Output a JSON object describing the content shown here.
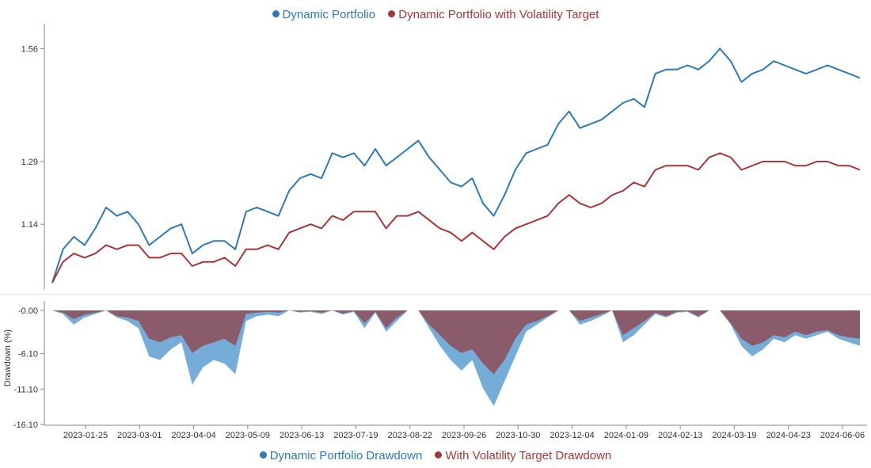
{
  "chart_data": [
    {
      "type": "line",
      "legend_position": "top-center",
      "grid": false,
      "y_ticks": [
        "1.56",
        "1.29",
        "1.14"
      ],
      "ylim": [
        0.985,
        1.61
      ],
      "x": [
        "2023-01-01",
        "2023-01-08",
        "2023-01-15",
        "2023-01-22",
        "2023-01-29",
        "2023-02-05",
        "2023-02-12",
        "2023-02-19",
        "2023-02-26",
        "2023-03-05",
        "2023-03-12",
        "2023-03-19",
        "2023-03-26",
        "2023-04-02",
        "2023-04-09",
        "2023-04-16",
        "2023-04-23",
        "2023-04-30",
        "2023-05-07",
        "2023-05-14",
        "2023-05-21",
        "2023-05-28",
        "2023-06-04",
        "2023-06-11",
        "2023-06-18",
        "2023-06-25",
        "2023-07-02",
        "2023-07-09",
        "2023-07-16",
        "2023-07-23",
        "2023-07-30",
        "2023-08-06",
        "2023-08-13",
        "2023-08-20",
        "2023-08-27",
        "2023-09-03",
        "2023-09-10",
        "2023-09-17",
        "2023-09-24",
        "2023-10-01",
        "2023-10-08",
        "2023-10-15",
        "2023-10-22",
        "2023-10-29",
        "2023-11-05",
        "2023-11-12",
        "2023-11-19",
        "2023-11-26",
        "2023-12-03",
        "2023-12-10",
        "2023-12-17",
        "2023-12-24",
        "2023-12-31",
        "2024-01-07",
        "2024-01-14",
        "2024-01-21",
        "2024-01-28",
        "2024-02-04",
        "2024-02-11",
        "2024-02-18",
        "2024-02-25",
        "2024-03-03",
        "2024-03-10",
        "2024-03-17",
        "2024-03-24",
        "2024-03-31",
        "2024-04-07",
        "2024-04-14",
        "2024-04-21",
        "2024-04-28",
        "2024-05-05",
        "2024-05-12",
        "2024-05-19",
        "2024-05-26",
        "2024-06-02",
        "2024-06-07"
      ],
      "series": [
        {
          "name": "Dynamic Portfolio",
          "color": "#2f79b3",
          "values": [
            1.0,
            1.08,
            1.11,
            1.09,
            1.13,
            1.18,
            1.16,
            1.17,
            1.14,
            1.09,
            1.11,
            1.13,
            1.14,
            1.07,
            1.09,
            1.1,
            1.1,
            1.08,
            1.17,
            1.18,
            1.17,
            1.16,
            1.22,
            1.25,
            1.26,
            1.25,
            1.31,
            1.3,
            1.31,
            1.28,
            1.32,
            1.28,
            1.3,
            1.32,
            1.34,
            1.3,
            1.27,
            1.24,
            1.23,
            1.25,
            1.19,
            1.16,
            1.21,
            1.27,
            1.31,
            1.32,
            1.33,
            1.38,
            1.41,
            1.37,
            1.38,
            1.39,
            1.41,
            1.43,
            1.44,
            1.42,
            1.5,
            1.51,
            1.51,
            1.52,
            1.51,
            1.53,
            1.56,
            1.53,
            1.48,
            1.5,
            1.51,
            1.53,
            1.52,
            1.51,
            1.5,
            1.51,
            1.52,
            1.51,
            1.5,
            1.49
          ]
        },
        {
          "name": "Dynamic Portfolio with Volatility Target",
          "color": "#a3373a",
          "values": [
            1.0,
            1.05,
            1.07,
            1.06,
            1.07,
            1.09,
            1.08,
            1.09,
            1.09,
            1.06,
            1.06,
            1.07,
            1.07,
            1.04,
            1.05,
            1.05,
            1.06,
            1.04,
            1.08,
            1.08,
            1.09,
            1.08,
            1.12,
            1.13,
            1.14,
            1.13,
            1.16,
            1.15,
            1.17,
            1.17,
            1.17,
            1.13,
            1.16,
            1.16,
            1.17,
            1.15,
            1.13,
            1.12,
            1.1,
            1.12,
            1.1,
            1.08,
            1.11,
            1.13,
            1.14,
            1.15,
            1.16,
            1.19,
            1.21,
            1.19,
            1.18,
            1.19,
            1.21,
            1.22,
            1.24,
            1.23,
            1.27,
            1.28,
            1.28,
            1.28,
            1.27,
            1.3,
            1.31,
            1.3,
            1.27,
            1.28,
            1.29,
            1.29,
            1.29,
            1.28,
            1.28,
            1.29,
            1.29,
            1.28,
            1.28,
            1.27
          ]
        }
      ]
    },
    {
      "type": "area",
      "legend_position": "bottom-center",
      "grid": false,
      "ylabel": "Drawdown (%)",
      "y_ticks": [
        "-0.00",
        "-6.10",
        "-11.10",
        "-16.10"
      ],
      "ylim": [
        -16.1,
        0.0
      ],
      "x_tick_labels": [
        "2023-01-25",
        "2023-03-01",
        "2023-04-04",
        "2023-05-09",
        "2023-06-13",
        "2023-07-19",
        "2023-08-22",
        "2023-09-26",
        "2023-10-30",
        "2023-12-04",
        "2024-01-09",
        "2024-02-13",
        "2024-03-19",
        "2024-04-23",
        "2024-06-06"
      ],
      "series": [
        {
          "name": "Dynamic Portfolio Drawdown",
          "color": "#6fa8d6",
          "values": [
            0.0,
            -0.5,
            -2.0,
            -1.0,
            -0.5,
            0.0,
            -1.0,
            -1.5,
            -2.5,
            -6.5,
            -7.0,
            -5.5,
            -4.5,
            -10.5,
            -8.0,
            -7.0,
            -7.5,
            -9.0,
            -1.5,
            -0.8,
            -0.6,
            -0.8,
            0.0,
            -0.3,
            -0.2,
            -0.5,
            0.0,
            -0.6,
            -0.2,
            -2.5,
            -0.3,
            -3.0,
            -1.5,
            0.0,
            0.0,
            -2.5,
            -5.0,
            -7.0,
            -8.5,
            -7.0,
            -11.0,
            -13.5,
            -10.0,
            -6.5,
            -3.0,
            -2.0,
            -1.0,
            0.0,
            0.0,
            -2.0,
            -1.5,
            -0.8,
            0.0,
            -4.5,
            -3.5,
            -2.0,
            -0.5,
            -1.0,
            -0.3,
            -0.2,
            -1.0,
            0.0,
            0.0,
            -2.0,
            -5.0,
            -6.5,
            -5.5,
            -4.0,
            -4.5,
            -3.5,
            -4.0,
            -3.5,
            -3.0,
            -4.0,
            -4.5,
            -5.0
          ]
        },
        {
          "name": "With Volatility Target Drawdown",
          "color": "#8a5c6b",
          "values": [
            0.0,
            -0.3,
            -1.2,
            -0.6,
            -0.3,
            0.0,
            -0.8,
            -1.0,
            -1.5,
            -4.0,
            -4.5,
            -3.8,
            -3.5,
            -6.0,
            -5.0,
            -4.5,
            -4.0,
            -5.0,
            -0.5,
            -0.3,
            -0.2,
            -0.3,
            0.0,
            -0.2,
            -0.1,
            -0.3,
            0.0,
            -0.4,
            -0.1,
            -1.8,
            -0.2,
            -2.5,
            -1.0,
            0.0,
            0.0,
            -2.0,
            -3.5,
            -5.0,
            -6.0,
            -5.5,
            -7.5,
            -9.0,
            -7.0,
            -4.0,
            -2.0,
            -1.5,
            -0.8,
            0.0,
            0.0,
            -1.5,
            -1.0,
            -0.5,
            0.0,
            -3.5,
            -2.5,
            -1.5,
            -0.3,
            -0.8,
            -0.2,
            -0.1,
            -0.8,
            0.0,
            0.0,
            -1.8,
            -4.0,
            -5.0,
            -4.5,
            -3.5,
            -3.8,
            -3.0,
            -3.5,
            -3.0,
            -2.8,
            -3.5,
            -3.8,
            -4.0
          ]
        }
      ]
    }
  ]
}
